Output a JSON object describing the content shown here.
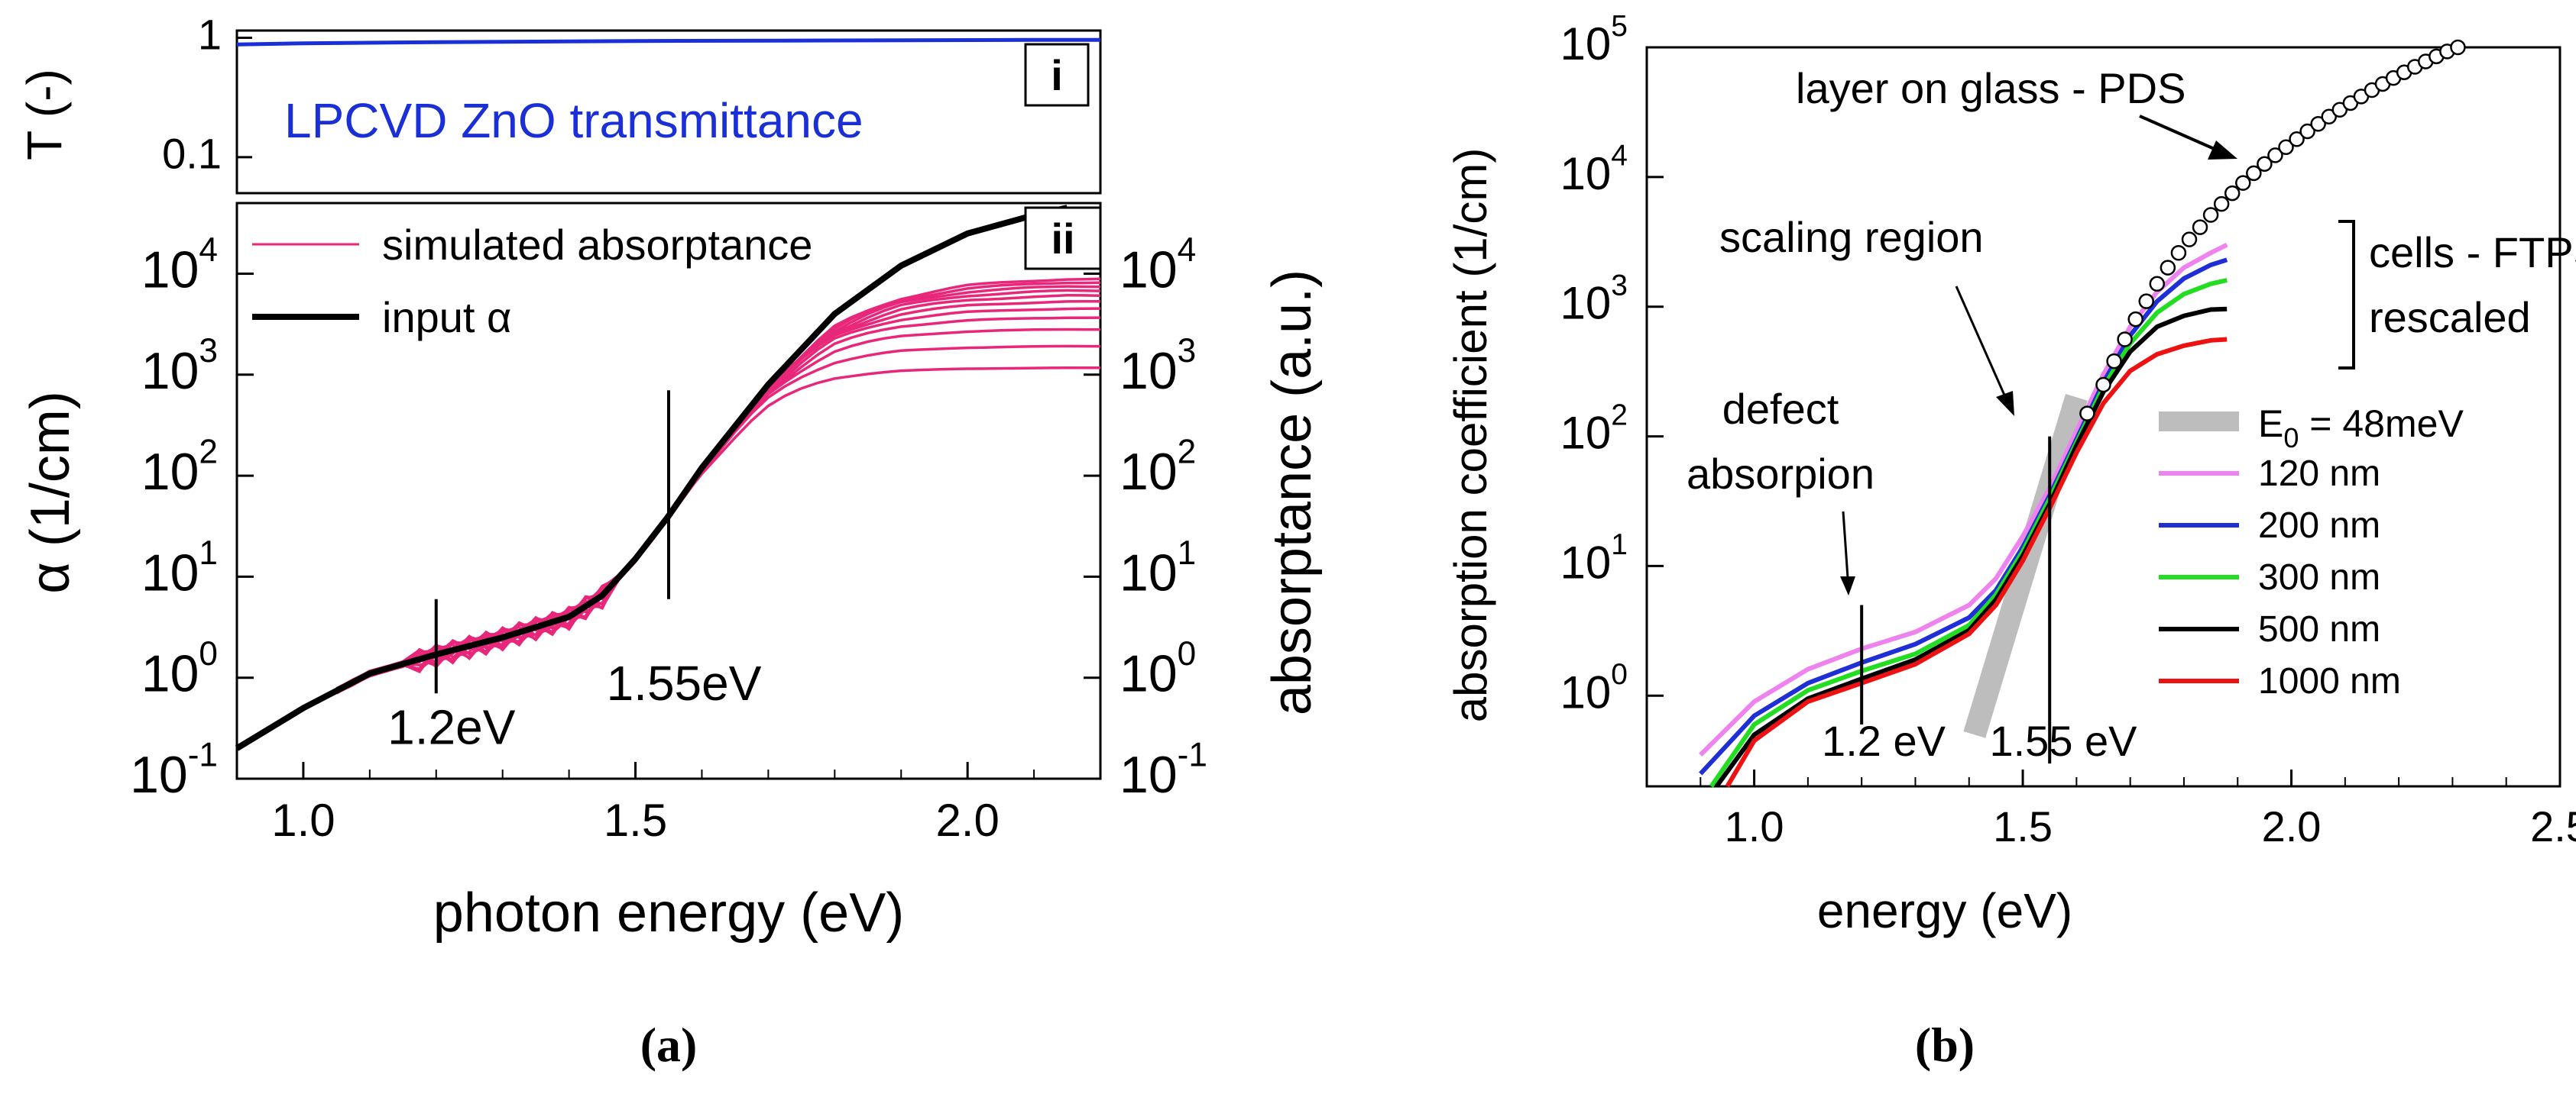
{
  "chart_data": [
    {
      "id": "a",
      "caption": "(a)",
      "panels": [
        {
          "type": "line",
          "id": "i",
          "tag": "i",
          "ylabel": "T (-)",
          "yscale": "log",
          "ylim": [
            0.05,
            1.15
          ],
          "yticks": [
            {
              "v": 1,
              "label": "1"
            },
            {
              "v": 0.1,
              "label": "0.1"
            }
          ],
          "annotation": "LPCVD ZnO transmittance",
          "series": [
            {
              "name": "LPCVD ZnO transmittance",
              "color": "#1a2fd6",
              "x": [
                0.9,
                1.0,
                1.2,
                1.5,
                1.8,
                2.1,
                2.2
              ],
              "y": [
                0.88,
                0.9,
                0.92,
                0.94,
                0.95,
                0.96,
                0.96
              ]
            }
          ]
        },
        {
          "type": "line",
          "id": "ii",
          "tag": "ii",
          "xlabel": "photon energy (eV)",
          "xlim": [
            0.9,
            2.2
          ],
          "xticks": [
            1.0,
            1.5,
            2.0
          ],
          "xtick_labels": [
            "1.0",
            "1.5",
            "2.0"
          ],
          "ylabel": "α (1/cm)",
          "ylabel_right": "absorptance (a.u.)",
          "yscale": "log",
          "ylim": [
            0.1,
            50000
          ],
          "yticks": [
            0.1,
            1,
            10,
            100,
            1000,
            10000
          ],
          "ytick_mant": [
            "10",
            "10",
            "10",
            "10",
            "10",
            "10"
          ],
          "ytick_exp": [
            "-1",
            "0",
            "1",
            "2",
            "3",
            "4"
          ],
          "legend": {
            "position": "top-left",
            "entries": [
              "simulated absorptance",
              "input α"
            ]
          },
          "markers": [
            {
              "x": 1.2,
              "y_from": 0.7,
              "y_to": 6,
              "label": "1.2eV"
            },
            {
              "x": 1.55,
              "y_from": 6,
              "y_to": 700,
              "label": "1.55eV"
            }
          ],
          "input_alpha": {
            "name": "input α",
            "color": "#000000",
            "x": [
              0.9,
              1.0,
              1.1,
              1.2,
              1.3,
              1.4,
              1.45,
              1.5,
              1.55,
              1.6,
              1.7,
              1.8,
              1.9,
              2.0,
              2.1,
              2.15
            ],
            "y": [
              0.2,
              0.5,
              1.1,
              1.7,
              2.5,
              4,
              6.5,
              15,
              40,
              120,
              800,
              4000,
              12000,
              25000,
              38000,
              45000
            ]
          },
          "simulated": {
            "name": "simulated absorptance",
            "color": "#e8277a",
            "x_start": 1.05,
            "x_end": 2.2,
            "plateaus": [
              1200,
              2000,
              3000,
              4000,
              5000,
              6000,
              7000,
              8000,
              9000,
              10000,
              11000
            ]
          }
        }
      ]
    },
    {
      "id": "b",
      "caption": "(b)",
      "type": "line",
      "xlabel": "energy (eV)",
      "ylabel": "absorption coefficient (1/cm)",
      "xlim": [
        0.8,
        2.5
      ],
      "xticks": [
        1.0,
        1.5,
        2.0,
        2.5
      ],
      "xtick_labels": [
        "1.0",
        "1.5",
        "2.0",
        "2.5"
      ],
      "yscale": "log",
      "ylim": [
        0.2,
        100000
      ],
      "yticks": [
        1,
        10,
        100,
        1000,
        10000,
        100000
      ],
      "ytick_mant": [
        "10",
        "10",
        "10",
        "10",
        "10",
        "10"
      ],
      "ytick_exp": [
        "0",
        "1",
        "2",
        "3",
        "4",
        "5"
      ],
      "pds": {
        "name": "layer on glass - PDS",
        "x": [
          1.62,
          1.65,
          1.67,
          1.69,
          1.71,
          1.73,
          1.75,
          1.77,
          1.79,
          1.81,
          1.83,
          1.85,
          1.87,
          1.89,
          1.91,
          1.93,
          1.95,
          1.97,
          1.99,
          2.01,
          2.03,
          2.05,
          2.07,
          2.09,
          2.11,
          2.13,
          2.15,
          2.17,
          2.19,
          2.21,
          2.23,
          2.25,
          2.27,
          2.29,
          2.31
        ],
        "y": [
          150,
          250,
          380,
          560,
          800,
          1100,
          1500,
          2000,
          2600,
          3300,
          4100,
          5100,
          6200,
          7500,
          9000,
          10700,
          12600,
          14700,
          17000,
          19600,
          22500,
          25700,
          29200,
          33000,
          37200,
          41800,
          46800,
          52200,
          58000,
          64200,
          70800,
          77800,
          85200,
          93000,
          101000
        ]
      },
      "fit": {
        "label": "E0 = 48meV",
        "label_base": "E",
        "label_sub": "0",
        "label_rest": " = 48meV",
        "color": "#bdbdbd",
        "x": [
          1.41,
          1.6
        ],
        "y": [
          0.5,
          200
        ]
      },
      "series": [
        {
          "name": "120 nm",
          "color": "#ee82ee",
          "x": [
            0.9,
            1.0,
            1.1,
            1.2,
            1.3,
            1.4,
            1.45,
            1.5,
            1.55,
            1.6,
            1.65,
            1.7,
            1.75,
            1.8,
            1.85,
            1.88
          ],
          "y": [
            0.35,
            0.9,
            1.6,
            2.3,
            3.1,
            5.0,
            8.0,
            17,
            40,
            110,
            300,
            700,
            1300,
            2000,
            2600,
            3000
          ]
        },
        {
          "name": "200 nm",
          "color": "#1f2fd6",
          "x": [
            0.9,
            1.0,
            1.1,
            1.2,
            1.3,
            1.4,
            1.45,
            1.5,
            1.55,
            1.6,
            1.65,
            1.7,
            1.75,
            1.8,
            1.85,
            1.88
          ],
          "y": [
            0.25,
            0.7,
            1.25,
            1.8,
            2.5,
            4.0,
            6.5,
            14,
            35,
            95,
            260,
            600,
            1100,
            1650,
            2100,
            2300
          ]
        },
        {
          "name": "300 nm",
          "color": "#22dd22",
          "x": [
            0.92,
            1.0,
            1.1,
            1.2,
            1.3,
            1.4,
            1.45,
            1.5,
            1.55,
            1.6,
            1.65,
            1.7,
            1.75,
            1.8,
            1.85,
            1.88
          ],
          "y": [
            0.2,
            0.6,
            1.1,
            1.55,
            2.1,
            3.5,
            6.0,
            13,
            33,
            90,
            240,
            520,
            900,
            1250,
            1500,
            1600
          ]
        },
        {
          "name": "500 nm",
          "color": "#000000",
          "x": [
            0.93,
            1.0,
            1.1,
            1.2,
            1.3,
            1.4,
            1.45,
            1.5,
            1.55,
            1.6,
            1.65,
            1.7,
            1.75,
            1.8,
            1.85,
            1.88
          ],
          "y": [
            0.2,
            0.5,
            0.95,
            1.35,
            1.9,
            3.2,
            5.5,
            12,
            30,
            85,
            220,
            450,
            700,
            850,
            950,
            960
          ]
        },
        {
          "name": "1000 nm",
          "color": "#ee1111",
          "x": [
            0.95,
            1.0,
            1.1,
            1.2,
            1.3,
            1.4,
            1.45,
            1.5,
            1.55,
            1.6,
            1.65,
            1.7,
            1.75,
            1.8,
            1.85,
            1.88
          ],
          "y": [
            0.2,
            0.45,
            0.9,
            1.25,
            1.75,
            3.0,
            5.0,
            11,
            28,
            75,
            180,
            320,
            430,
            500,
            550,
            560
          ]
        }
      ],
      "bracket_label_1": "cells - FTPS",
      "bracket_label_2": "rescaled",
      "annotations": {
        "scaling_region": "scaling region",
        "defect_1": "defect",
        "defect_2": "absorpion",
        "e1": "1.2 eV",
        "e2": "1.55 eV"
      },
      "markers": [
        {
          "x": 1.2,
          "y_from": 0.6,
          "y_to": 5
        },
        {
          "x": 1.55,
          "y_from": 0.3,
          "y_to": 100
        }
      ]
    }
  ]
}
